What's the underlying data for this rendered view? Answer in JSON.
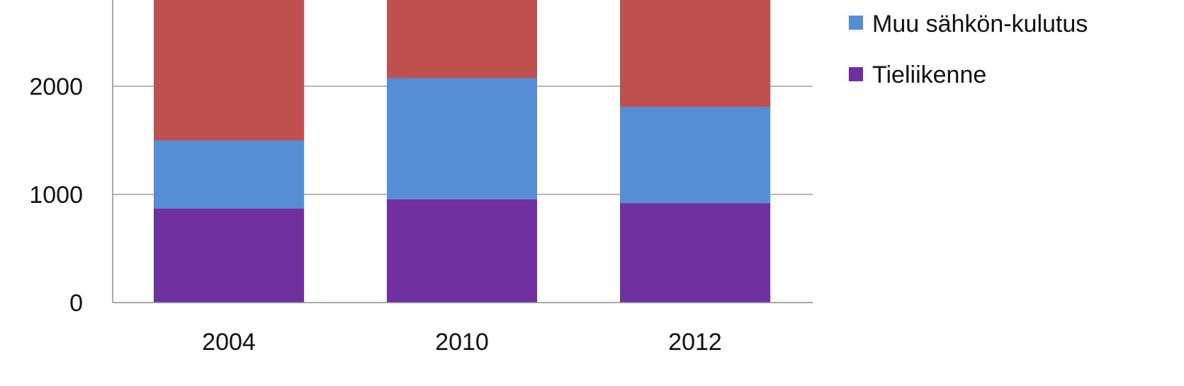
{
  "chart_data": {
    "type": "bar",
    "stacked": true,
    "categories": [
      "2004",
      "2010",
      "2012"
    ],
    "series": [
      {
        "name": "Tieliikenne",
        "color": "#7030A0",
        "values": [
          870,
          955,
          920
        ]
      },
      {
        "name": "Muu sähkön-kulutus",
        "color": "#558ED5",
        "values": [
          630,
          1120,
          890
        ]
      },
      {
        "name": "",
        "color": "#C0504D",
        "values": [
          1330,
          830,
          1020
        ]
      }
    ],
    "y_ticks": [
      "0",
      "1000",
      "2000"
    ],
    "ylim": [
      0,
      2830
    ],
    "grid": true,
    "legend_position": "right",
    "legend_entries": [
      {
        "label": "Muu sähkön-kulutus",
        "color": "#558ED5"
      },
      {
        "label": "Tieliikenne",
        "color": "#7030A0"
      }
    ]
  }
}
